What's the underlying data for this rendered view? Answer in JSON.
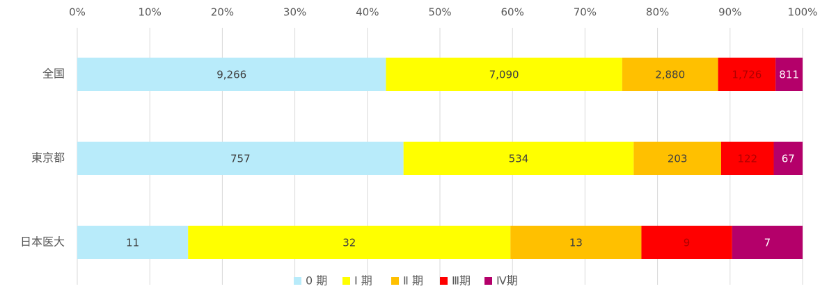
{
  "chart_data": {
    "type": "bar",
    "orientation": "horizontal",
    "stacking": "percent",
    "categories": [
      "全国",
      "東京都",
      "日本医大"
    ],
    "series": [
      {
        "name": "0 期",
        "color": "#b8ebfa",
        "label_color": "#404040",
        "values": [
          9266,
          757,
          11
        ],
        "value_labels": [
          "9,266",
          "757",
          "11"
        ]
      },
      {
        "name": "Ⅰ 期",
        "color": "#ffff00",
        "label_color": "#404040",
        "values": [
          7090,
          534,
          32
        ],
        "value_labels": [
          "7,090",
          "534",
          "32"
        ]
      },
      {
        "name": "Ⅱ 期",
        "color": "#ffc000",
        "label_color": "#404040",
        "values": [
          2880,
          203,
          13
        ],
        "value_labels": [
          "2,880",
          "203",
          "13"
        ]
      },
      {
        "name": "Ⅲ期",
        "color": "#ff0000",
        "label_color": "#b00000",
        "values": [
          1726,
          122,
          9
        ],
        "value_labels": [
          "1,726",
          "122",
          "9"
        ]
      },
      {
        "name": "Ⅳ期",
        "color": "#b4006a",
        "label_color": "#ffffff",
        "values": [
          811,
          67,
          7
        ],
        "value_labels": [
          "811",
          "67",
          "7"
        ]
      }
    ],
    "xlim": [
      0,
      100
    ],
    "xticks": [
      {
        "value": 0,
        "label": "0%"
      },
      {
        "value": 10,
        "label": "10%"
      },
      {
        "value": 20,
        "label": "20%"
      },
      {
        "value": 30,
        "label": "30%"
      },
      {
        "value": 40,
        "label": "40%"
      },
      {
        "value": 50,
        "label": "50%"
      },
      {
        "value": 60,
        "label": "60%"
      },
      {
        "value": 70,
        "label": "70%"
      },
      {
        "value": 80,
        "label": "80%"
      },
      {
        "value": 90,
        "label": "90%"
      },
      {
        "value": 100,
        "label": "100%"
      }
    ],
    "grid": true,
    "legend": "bottom"
  }
}
